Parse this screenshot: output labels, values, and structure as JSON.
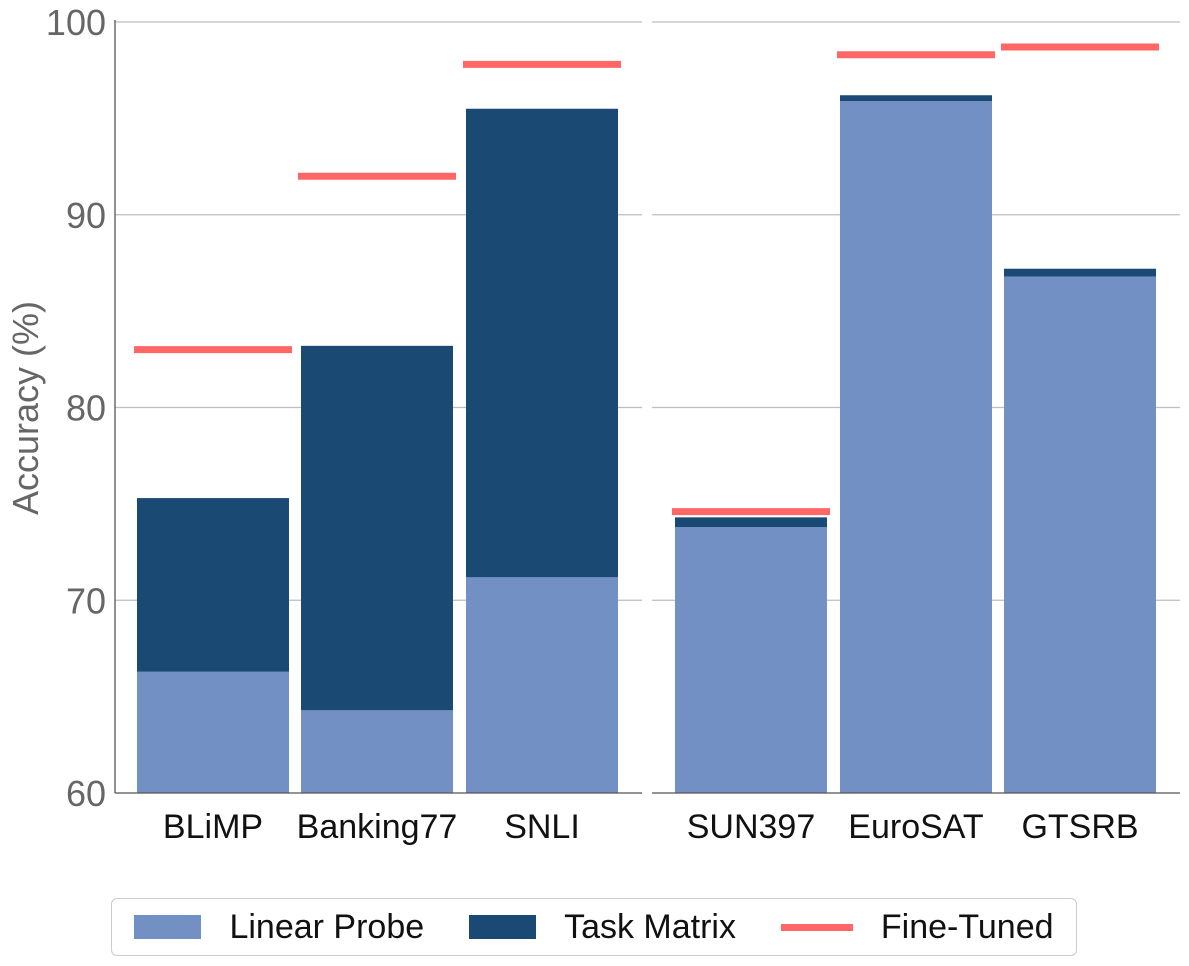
{
  "chart_data": {
    "type": "bar",
    "ylabel": "Accuracy (%)",
    "ylim": [
      60,
      100
    ],
    "yticks": [
      60,
      70,
      80,
      90,
      100
    ],
    "grid": true,
    "stacked": true,
    "legend_placement": "bottom-center",
    "panels": [
      {
        "categories": [
          "BLiMP",
          "Banking77",
          "SNLI"
        ],
        "linear_probe": [
          66.3,
          64.3,
          71.2
        ],
        "task_matrix": [
          75.3,
          83.2,
          95.5
        ],
        "fine_tuned": [
          83.0,
          92.0,
          97.8
        ]
      },
      {
        "categories": [
          "SUN397",
          "EuroSAT",
          "GTSRB"
        ],
        "linear_probe": [
          73.8,
          95.9,
          86.8
        ],
        "task_matrix": [
          74.3,
          96.2,
          87.2
        ],
        "fine_tuned": [
          74.6,
          98.3,
          98.7
        ]
      }
    ],
    "series": [
      {
        "name": "Linear Probe",
        "color": "#7390c4"
      },
      {
        "name": "Task Matrix",
        "color": "#1a4a73"
      },
      {
        "name": "Fine-Tuned",
        "color": "#ff6666"
      }
    ]
  }
}
